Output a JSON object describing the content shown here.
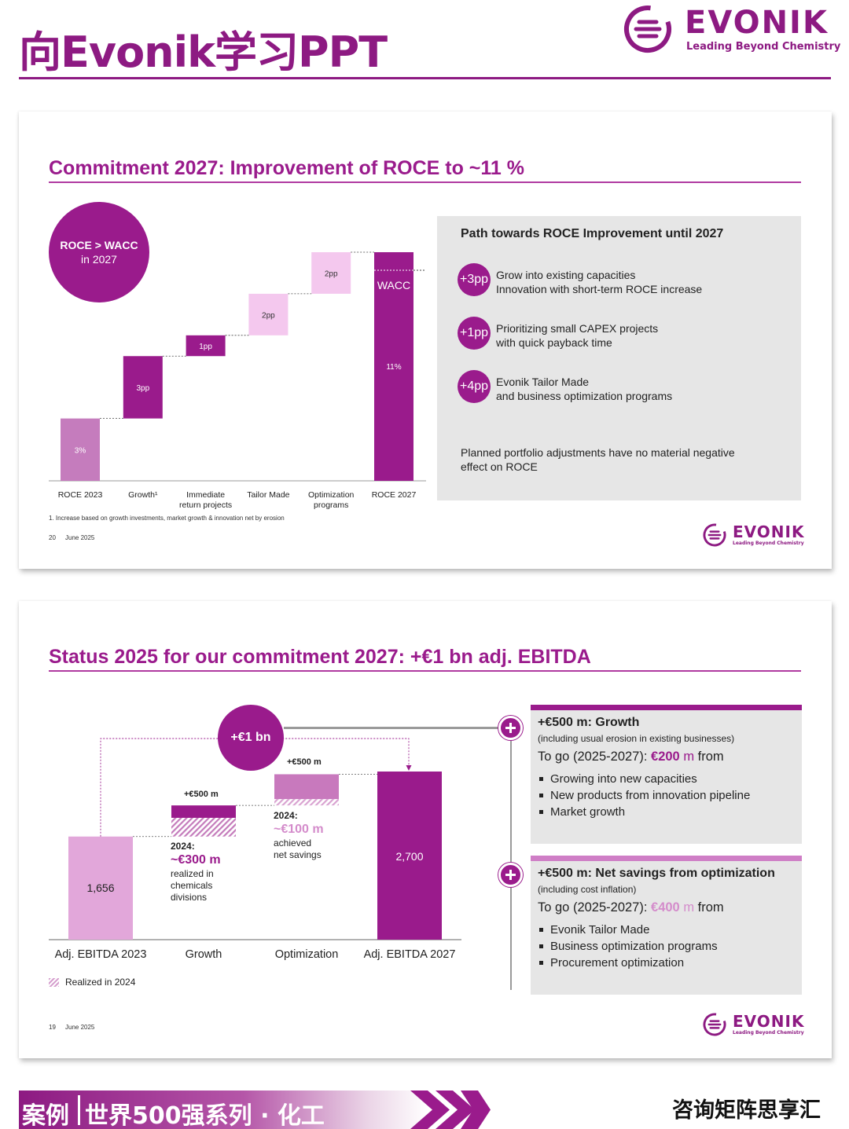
{
  "header": {
    "title": "向Evonik学习PPT",
    "logo_word": "EVONIK",
    "logo_tagline": "Leading Beyond Chemistry"
  },
  "slide1": {
    "title": "Commitment 2027: Improvement of ROCE to ~11 %",
    "badge_line1": "ROCE > WACC",
    "badge_line2": "in 2027",
    "wacc_label": "WACC",
    "footnote": "1. Increase based on growth investments, market growth & innovation net by erosion",
    "page_number": "20",
    "date": "June 2025",
    "logo_word": "EVONIK",
    "logo_tagline": "Leading Beyond Chemistry",
    "panel": {
      "heading": "Path towards ROCE Improvement until 2027",
      "items": [
        {
          "badge": "+3pp",
          "line1": "Grow into existing capacities",
          "line2": "Innovation with short-term ROCE increase"
        },
        {
          "badge": "+1pp",
          "line1": "Prioritizing small CAPEX projects",
          "line2": "with quick payback time"
        },
        {
          "badge": "+4pp",
          "line1": "Evonik Tailor Made",
          "line2": "and business optimization programs"
        }
      ],
      "note_line1": "Planned portfolio adjustments have no material negative",
      "note_line2": "effect on ROCE"
    },
    "chart_data": {
      "type": "waterfall",
      "categories": [
        "ROCE 2023",
        "Growth¹",
        "Immediate return projects",
        "Tailor Made",
        "Optimization programs",
        "ROCE 2027"
      ],
      "category_lines": [
        [
          "ROCE 2023"
        ],
        [
          "Growth¹"
        ],
        [
          "Immediate",
          "return projects"
        ],
        [
          "Tailor Made"
        ],
        [
          "Optimization",
          "programs"
        ],
        [
          "ROCE 2027"
        ]
      ],
      "values": [
        3,
        3,
        1,
        2,
        2,
        11
      ],
      "value_labels": [
        "3%",
        "3pp",
        "1pp",
        "2pp",
        "2pp",
        "11%"
      ],
      "kinds": [
        "total",
        "delta",
        "delta",
        "delta",
        "delta",
        "total"
      ],
      "colors": {
        "start": "#c57cbd",
        "delta_dark": "#9a1b8c",
        "delta_light": "#f4c8ee",
        "end": "#9a1b8c"
      },
      "unit": "%",
      "ylim": [
        0,
        11
      ]
    }
  },
  "slide2": {
    "title": "Status 2025 for our commitment 2027: +€1 bn adj. EBITDA",
    "badge": "+€1 bn",
    "growth_top_label": "+€500 m",
    "optim_top_label": "+€500 m",
    "growth_note": {
      "year": "2024:",
      "amount": "~€300 m",
      "lines": [
        "realized in",
        "chemicals",
        "divisions"
      ]
    },
    "optim_note": {
      "year": "2024:",
      "amount": "~€100 m",
      "lines": [
        "achieved",
        "net savings"
      ]
    },
    "legend_label": "Realized in 2024",
    "page_number": "19",
    "date": "June 2025",
    "logo_word": "EVONIK",
    "logo_tagline": "Leading Beyond Chemistry",
    "chart_data": {
      "type": "waterfall",
      "categories": [
        "Adj. EBITDA 2023",
        "Growth",
        "Optimization",
        "Adj. EBITDA 2027"
      ],
      "values": [
        1656,
        500,
        500,
        2700
      ],
      "value_labels": [
        "1,656",
        "",
        "",
        "2,700"
      ],
      "realized_2024": [
        null,
        300,
        100,
        null
      ],
      "unit": "€ m",
      "colors": {
        "start": "#e2a7da",
        "growth": "#9a1b8c",
        "optimization": "#c879bd",
        "end": "#9a1b8c"
      }
    },
    "boxes": [
      {
        "title": "+€500 m: Growth",
        "subtitle": "(including usual erosion in existing businesses)",
        "togo_prefix": "To go (2025-2027): ",
        "togo_value": "€200",
        "togo_unit": " m",
        "togo_suffix": " from",
        "bullets": [
          "Growing into new capacities",
          "New products from innovation pipeline",
          "Market growth"
        ],
        "accent": "#9a1b8c",
        "value_color": "#9a1b8c"
      },
      {
        "title": "+€500 m: Net savings from optimization",
        "subtitle": "(including cost inflation)",
        "togo_prefix": "To go (2025-2027): ",
        "togo_value": "€400",
        "togo_unit": " m",
        "togo_suffix": " from",
        "bullets": [
          "Evonik Tailor Made",
          "Business optimization programs",
          "Procurement optimization"
        ],
        "accent": "#cf7ec6",
        "value_color": "#d48ccb"
      }
    ]
  },
  "footer": {
    "tag1": "案例",
    "tag2": "世界500强系列 · 化工",
    "right_text": "咨询矩阵思享汇"
  }
}
